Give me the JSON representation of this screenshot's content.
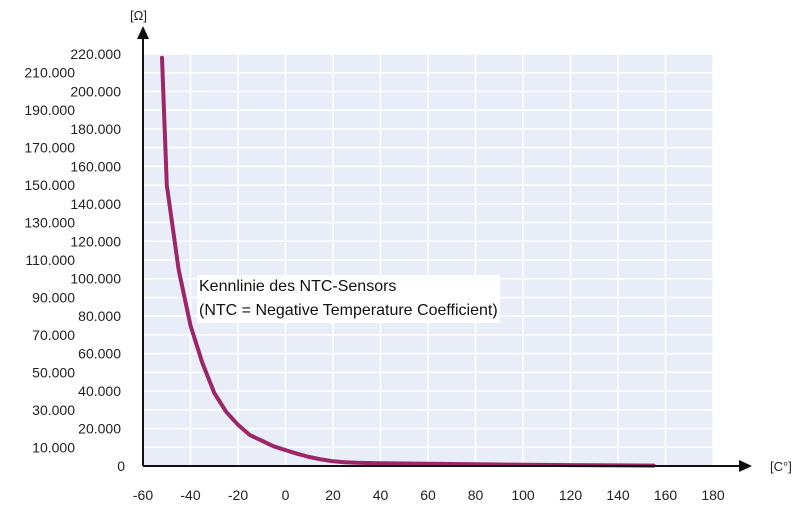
{
  "chart_data": {
    "type": "line",
    "title": "",
    "xlabel": "[C°]",
    "ylabel": "[Ω]",
    "xlim": [
      -60,
      180
    ],
    "ylim": [
      0,
      220000
    ],
    "x_ticks": [
      -60,
      -40,
      -20,
      0,
      20,
      40,
      60,
      80,
      100,
      120,
      140,
      160,
      180
    ],
    "x_tick_labels": [
      "-60",
      "-40",
      "-20",
      "0",
      "20",
      "40",
      "60",
      "80",
      "100",
      "120",
      "140",
      "160",
      "180"
    ],
    "y_ticks": [
      0,
      10000,
      20000,
      30000,
      40000,
      50000,
      60000,
      70000,
      80000,
      90000,
      100000,
      110000,
      120000,
      130000,
      140000,
      150000,
      160000,
      170000,
      180000,
      190000,
      200000,
      210000,
      220000
    ],
    "y_tick_labels": [
      "0",
      "10.000",
      "20.000",
      "30.000",
      "40.000",
      "50.000",
      "60.000",
      "70.000",
      "80.000",
      "90.000",
      "100.000",
      "110.000",
      "120.000",
      "130.000",
      "140.000",
      "150.000",
      "160.000",
      "170.000",
      "180.000",
      "190.000",
      "200.000",
      "210.000",
      "220.000"
    ],
    "grid": true,
    "series": [
      {
        "name": "",
        "color": "#9b2768",
        "x": [
          -52,
          -50,
          -45,
          -40,
          -35,
          -30,
          -25,
          -20,
          -15,
          -10,
          -5,
          0,
          5,
          10,
          15,
          20,
          25,
          30,
          40,
          60,
          80,
          100,
          120,
          140,
          155
        ],
        "y": [
          218000,
          150000,
          105000,
          75000,
          55000,
          39000,
          29000,
          22000,
          16500,
          13500,
          10500,
          8500,
          6500,
          4800,
          3500,
          2500,
          2000,
          1700,
          1500,
          1200,
          900,
          700,
          500,
          300,
          200
        ]
      }
    ],
    "annotation": {
      "line1": "Kennlinie des NTC-Sensors",
      "line2": "(NTC = Negative Temperature Coefficient)"
    },
    "colors": {
      "plot_background": "#e9edf7",
      "grid": "#ffffff",
      "axis": "#111111",
      "curve": "#9b2768"
    }
  }
}
